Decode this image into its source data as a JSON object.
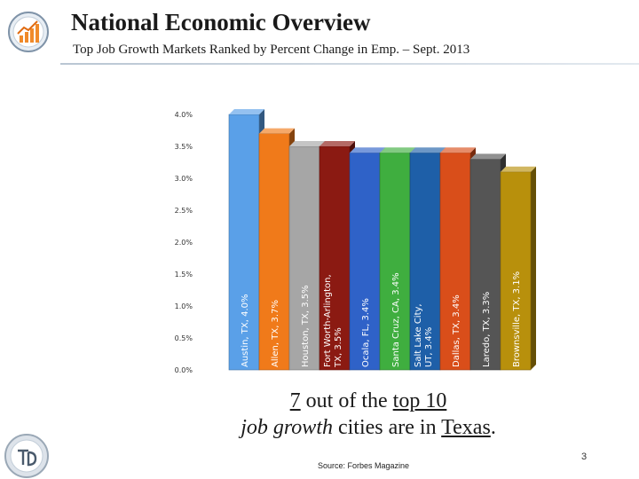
{
  "header": {
    "title": "National Economic Overview",
    "subtitle": "Top Job Growth Markets Ranked by Percent Change in Emp. – Sept. 2013"
  },
  "chart_data": {
    "type": "bar",
    "categories": [
      "Austin, TX, 4.0%",
      "Allen, TX, 3.7%",
      "Houston, TX, 3.5%",
      "Fort Worth-Arlington, TX, 3.5%",
      "Ocala, FL, 3.4%",
      "Santa Cruz, CA, 3.4%",
      "Salt Lake City, UT, 3.4%",
      "Dallas, TX, 3.4%",
      "Laredo, TX, 3.3%",
      "Brownsville, TX, 3.1%"
    ],
    "values": [
      4.0,
      3.7,
      3.5,
      3.5,
      3.4,
      3.4,
      3.4,
      3.4,
      3.3,
      3.1
    ],
    "colors": [
      "#5aa0e8",
      "#f07a1a",
      "#a6a6a6",
      "#8b1a12",
      "#2f62c8",
      "#3fae3f",
      "#1e5fa8",
      "#d94e1a",
      "#555555",
      "#b8900c"
    ],
    "yticks": [
      "0.0%",
      "0.5%",
      "1.0%",
      "1.5%",
      "2.0%",
      "2.5%",
      "3.0%",
      "3.5%",
      "4.0%"
    ],
    "ylim": [
      0,
      4.0
    ],
    "grid": false,
    "legend": "none"
  },
  "caption": {
    "count": "7",
    "part1": " out of the ",
    "top10": "top 10",
    "phrase": "job growth",
    "part2": " cities are in ",
    "state": "Texas",
    "end": "."
  },
  "source": "Source: Forbes Magazine",
  "page_number": "3"
}
